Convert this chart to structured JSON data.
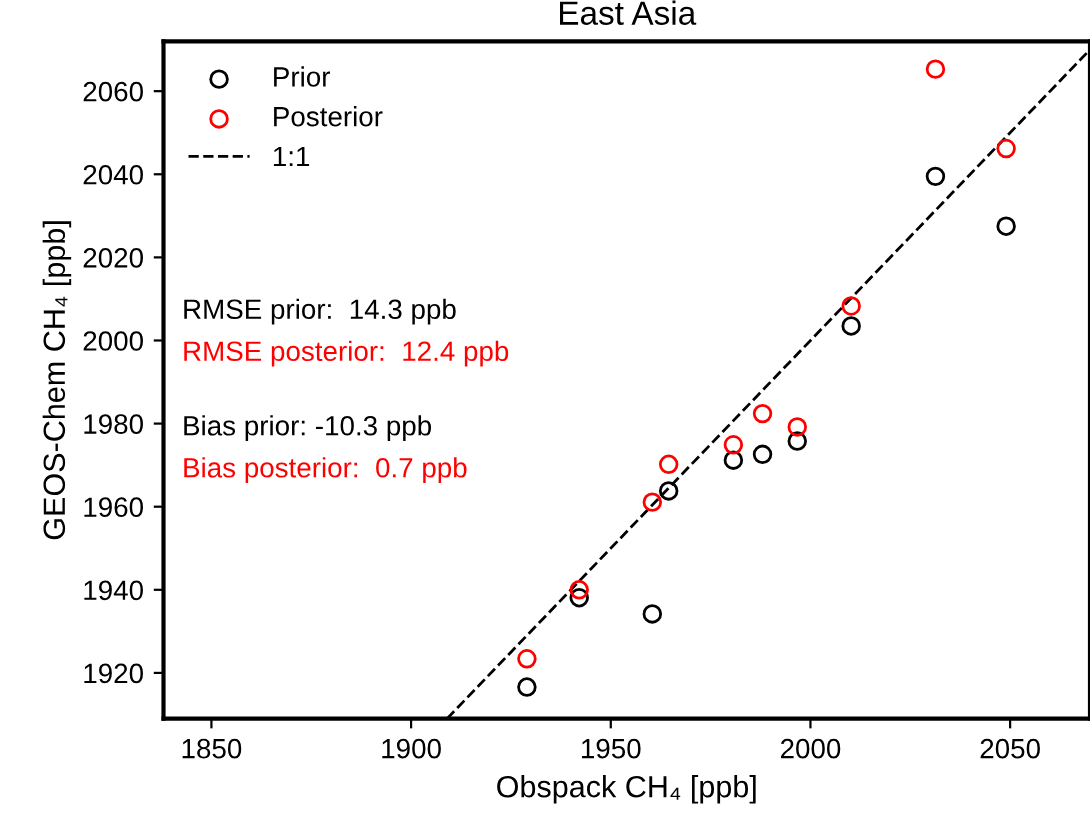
{
  "chart_data": {
    "type": "scatter",
    "title": "East Asia",
    "xlabel": "Obspack CH₄ [ppb]",
    "ylabel": "GEOS-Chem CH₄ [ppb]",
    "series": [
      {
        "name": "Prior",
        "color": "#000000",
        "marker": "circle",
        "x": [
          1929.0,
          1942.1,
          1960.4,
          1964.5,
          1980.7,
          1988.0,
          1996.7,
          2010.2,
          2031.3,
          2049.0
        ],
        "values": [
          1916.6,
          1938.1,
          1934.2,
          1963.8,
          1971.2,
          1972.6,
          1975.8,
          2003.5,
          2039.5,
          2027.5
        ]
      },
      {
        "name": "Posterior",
        "color": "#ff0000",
        "marker": "circle",
        "x": [
          1929.0,
          1942.1,
          1960.4,
          1964.5,
          1980.7,
          1988.0,
          1996.7,
          2010.2,
          2031.3,
          2049.0
        ],
        "values": [
          1923.4,
          1940.0,
          1961.1,
          1970.2,
          1974.9,
          1982.4,
          1979.2,
          2008.3,
          2065.3,
          2046.2
        ]
      },
      {
        "name": "1:1",
        "type": "line",
        "color": "#000000",
        "line_style": "dashed",
        "x": [
          1909,
          2070
        ],
        "values": [
          1909,
          2070
        ]
      }
    ],
    "annotations": [
      "RMSE prior:  14.3 ppb",
      "RMSE posterior:  12.4 ppb",
      "Bias prior: -10.3 ppb",
      "Bias posterior:  0.7 ppb"
    ],
    "xlim": [
      1838,
      2070
    ],
    "ylim": [
      1909,
      2072
    ],
    "xticks": [
      1850,
      1900,
      1950,
      2000,
      2050
    ],
    "yticks": [
      1920,
      1940,
      1960,
      1980,
      2000,
      2020,
      2040,
      2060
    ],
    "grid": false,
    "legend": "top left"
  }
}
